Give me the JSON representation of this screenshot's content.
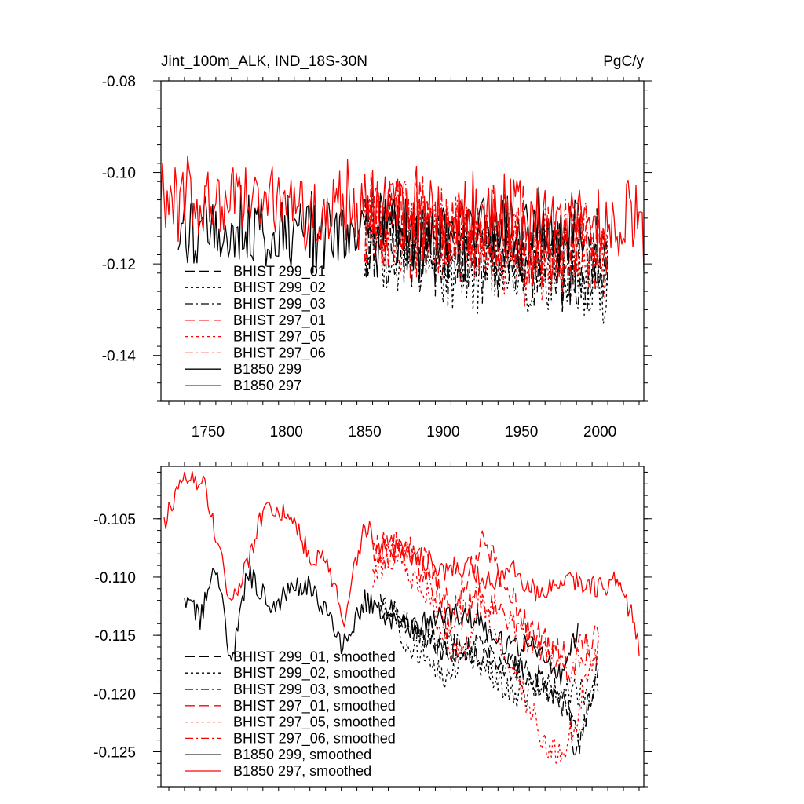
{
  "header": {
    "title": "Jint_100m_ALK, IND_18S-30N",
    "units": "PgC/y"
  },
  "chart_data": [
    {
      "type": "line",
      "xlim": [
        1720,
        2028
      ],
      "ylim": [
        -0.15,
        -0.08
      ],
      "xticks": [
        1750,
        1800,
        1850,
        1900,
        1950,
        2000
      ],
      "xtick_labels": [
        "1750",
        "1800",
        "1850",
        "1900",
        "1950",
        "2000"
      ],
      "yticks": [
        -0.08,
        -0.1,
        -0.12,
        -0.14
      ],
      "ytick_labels": [
        "-0.08",
        "-0.10",
        "-0.12",
        "-0.14"
      ],
      "legend_placement": "bottom-left",
      "series": [
        {
          "name": "BHIST 299_01",
          "color": "#000000",
          "dash": "long-dash",
          "start": 1850,
          "end": 2005,
          "base": -0.114,
          "trend": -4e-05,
          "amp": 0.009,
          "seed": 11
        },
        {
          "name": "BHIST 299_02",
          "color": "#000000",
          "dash": "dot",
          "start": 1850,
          "end": 2005,
          "base": -0.116,
          "trend": -5e-05,
          "amp": 0.009,
          "seed": 12
        },
        {
          "name": "BHIST 299_03",
          "color": "#000000",
          "dash": "dash-dot",
          "start": 1850,
          "end": 2005,
          "base": -0.115,
          "trend": -4e-05,
          "amp": 0.009,
          "seed": 13
        },
        {
          "name": "BHIST 297_01",
          "color": "#ff0000",
          "dash": "long-dash",
          "start": 1850,
          "end": 2005,
          "base": -0.11,
          "trend": -4e-05,
          "amp": 0.009,
          "seed": 14
        },
        {
          "name": "BHIST 297_05",
          "color": "#ff0000",
          "dash": "dot",
          "start": 1850,
          "end": 2005,
          "base": -0.112,
          "trend": -6e-05,
          "amp": 0.009,
          "seed": 15
        },
        {
          "name": "BHIST 297_06",
          "color": "#ff0000",
          "dash": "dash-dot",
          "start": 1850,
          "end": 2005,
          "base": -0.111,
          "trend": -4e-05,
          "amp": 0.009,
          "seed": 16
        },
        {
          "name": "B1850 299",
          "color": "#000000",
          "dash": "solid",
          "start": 1731,
          "end": 1990,
          "base": -0.113,
          "trend": 0.0,
          "amp": 0.008,
          "seed": 17
        },
        {
          "name": "B1850 297",
          "color": "#ff0000",
          "dash": "solid",
          "start": 1720,
          "end": 2028,
          "base": -0.108,
          "trend": -2e-05,
          "amp": 0.008,
          "seed": 18
        }
      ]
    },
    {
      "type": "line",
      "xlim": [
        1720,
        2028
      ],
      "ylim": [
        -0.128,
        -0.1005
      ],
      "yticks": [
        -0.105,
        -0.11,
        -0.115,
        -0.12,
        -0.125
      ],
      "ytick_labels": [
        "-0.105",
        "-0.110",
        "-0.115",
        "-0.120",
        "-0.125"
      ],
      "legend_placement": "bottom-left",
      "series": [
        {
          "name": "BHIST 299_01, smoothed",
          "color": "#000000",
          "dash": "long-dash",
          "start": 1860,
          "end": 1999,
          "key": [
            [
              1860,
              -0.112
            ],
            [
              1880,
              -0.114
            ],
            [
              1900,
              -0.1165
            ],
            [
              1920,
              -0.116
            ],
            [
              1940,
              -0.117
            ],
            [
              1960,
              -0.1185
            ],
            [
              1980,
              -0.1215
            ],
            [
              1985,
              -0.1255
            ],
            [
              1992,
              -0.121
            ],
            [
              1999,
              -0.118
            ]
          ],
          "amp": 0.0012,
          "seed": 21
        },
        {
          "name": "BHIST 299_02, smoothed",
          "color": "#000000",
          "dash": "dot",
          "start": 1860,
          "end": 1999,
          "key": [
            [
              1860,
              -0.112
            ],
            [
              1875,
              -0.1155
            ],
            [
              1890,
              -0.117
            ],
            [
              1900,
              -0.1185
            ],
            [
              1915,
              -0.1165
            ],
            [
              1930,
              -0.118
            ],
            [
              1945,
              -0.1205
            ],
            [
              1960,
              -0.1195
            ],
            [
              1975,
              -0.1195
            ],
            [
              1990,
              -0.12
            ],
            [
              1999,
              -0.119
            ]
          ],
          "amp": 0.0012,
          "seed": 22
        },
        {
          "name": "BHIST 299_03, smoothed",
          "color": "#000000",
          "dash": "dash-dot",
          "start": 1860,
          "end": 1999,
          "key": [
            [
              1860,
              -0.112
            ],
            [
              1880,
              -0.1145
            ],
            [
              1900,
              -0.1155
            ],
            [
              1920,
              -0.1165
            ],
            [
              1940,
              -0.1175
            ],
            [
              1960,
              -0.119
            ],
            [
              1975,
              -0.12
            ],
            [
              1986,
              -0.1235
            ],
            [
              1990,
              -0.1225
            ],
            [
              1999,
              -0.117
            ]
          ],
          "amp": 0.0012,
          "seed": 23
        },
        {
          "name": "BHIST 297_01, smoothed",
          "color": "#ff0000",
          "dash": "long-dash",
          "start": 1855,
          "end": 1999,
          "key": [
            [
              1855,
              -0.108
            ],
            [
              1870,
              -0.1065
            ],
            [
              1890,
              -0.109
            ],
            [
              1905,
              -0.113
            ],
            [
              1915,
              -0.1105
            ],
            [
              1925,
              -0.107
            ],
            [
              1935,
              -0.109
            ],
            [
              1950,
              -0.1135
            ],
            [
              1965,
              -0.1155
            ],
            [
              1980,
              -0.117
            ],
            [
              1992,
              -0.1155
            ],
            [
              1999,
              -0.115
            ]
          ],
          "amp": 0.0013,
          "seed": 24
        },
        {
          "name": "BHIST 297_05, smoothed",
          "color": "#ff0000",
          "dash": "dot",
          "start": 1855,
          "end": 1999,
          "key": [
            [
              1855,
              -0.11
            ],
            [
              1870,
              -0.108
            ],
            [
              1890,
              -0.1115
            ],
            [
              1905,
              -0.117
            ],
            [
              1915,
              -0.116
            ],
            [
              1925,
              -0.1125
            ],
            [
              1940,
              -0.117
            ],
            [
              1955,
              -0.121
            ],
            [
              1965,
              -0.1245
            ],
            [
              1975,
              -0.125
            ],
            [
              1985,
              -0.1225
            ],
            [
              1992,
              -0.118
            ],
            [
              1999,
              -0.116
            ]
          ],
          "amp": 0.0013,
          "seed": 25
        },
        {
          "name": "BHIST 297_06, smoothed",
          "color": "#ff0000",
          "dash": "dash-dot",
          "start": 1855,
          "end": 1999,
          "key": [
            [
              1855,
              -0.109
            ],
            [
              1870,
              -0.1075
            ],
            [
              1890,
              -0.11
            ],
            [
              1905,
              -0.115
            ],
            [
              1920,
              -0.1115
            ],
            [
              1935,
              -0.1125
            ],
            [
              1950,
              -0.115
            ],
            [
              1965,
              -0.1165
            ],
            [
              1980,
              -0.118
            ],
            [
              1992,
              -0.1165
            ],
            [
              1999,
              -0.116
            ]
          ],
          "amp": 0.0013,
          "seed": 26
        },
        {
          "name": "B1850 299, smoothed",
          "color": "#000000",
          "dash": "solid",
          "start": 1735,
          "end": 1986,
          "key": [
            [
              1735,
              -0.112
            ],
            [
              1745,
              -0.1135
            ],
            [
              1755,
              -0.109
            ],
            [
              1765,
              -0.1175
            ],
            [
              1775,
              -0.1095
            ],
            [
              1790,
              -0.1125
            ],
            [
              1800,
              -0.1115
            ],
            [
              1815,
              -0.1105
            ],
            [
              1825,
              -0.113
            ],
            [
              1835,
              -0.116
            ],
            [
              1850,
              -0.112
            ],
            [
              1865,
              -0.1135
            ],
            [
              1880,
              -0.1145
            ],
            [
              1900,
              -0.113
            ],
            [
              1920,
              -0.1135
            ],
            [
              1940,
              -0.116
            ],
            [
              1960,
              -0.116
            ],
            [
              1975,
              -0.1185
            ],
            [
              1986,
              -0.1145
            ]
          ],
          "amp": 0.001,
          "seed": 27
        },
        {
          "name": "B1850 297, smoothed",
          "color": "#ff0000",
          "dash": "solid",
          "start": 1722,
          "end": 2025,
          "key": [
            [
              1722,
              -0.1055
            ],
            [
              1735,
              -0.1015
            ],
            [
              1748,
              -0.102
            ],
            [
              1757,
              -0.1075
            ],
            [
              1764,
              -0.112
            ],
            [
              1775,
              -0.109
            ],
            [
              1785,
              -0.1045
            ],
            [
              1800,
              -0.1045
            ],
            [
              1815,
              -0.108
            ],
            [
              1825,
              -0.1085
            ],
            [
              1837,
              -0.1135
            ],
            [
              1850,
              -0.1055
            ],
            [
              1860,
              -0.1075
            ],
            [
              1870,
              -0.1075
            ],
            [
              1880,
              -0.1085
            ],
            [
              1890,
              -0.1085
            ],
            [
              1900,
              -0.1095
            ],
            [
              1915,
              -0.109
            ],
            [
              1930,
              -0.1105
            ],
            [
              1945,
              -0.1095
            ],
            [
              1960,
              -0.1115
            ],
            [
              1970,
              -0.1105
            ],
            [
              1985,
              -0.1105
            ],
            [
              2000,
              -0.111
            ],
            [
              2010,
              -0.11
            ],
            [
              2020,
              -0.113
            ],
            [
              2025,
              -0.1165
            ]
          ],
          "amp": 0.001,
          "seed": 28
        }
      ]
    }
  ]
}
